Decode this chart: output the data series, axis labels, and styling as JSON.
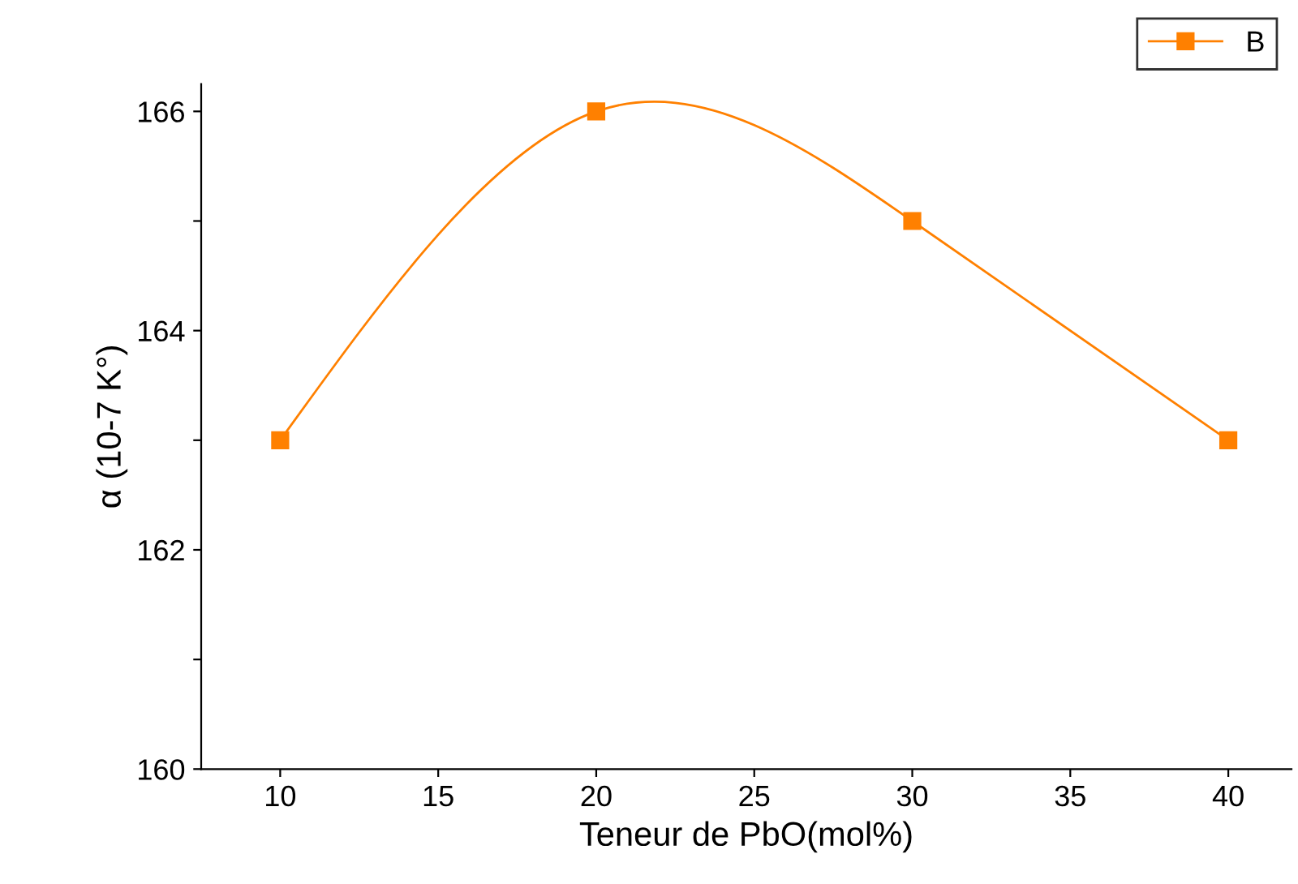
{
  "chart_data": {
    "type": "line",
    "xlabel": "Teneur de PbO(mol%)",
    "ylabel": "α (10-7 K°)",
    "x": [
      10,
      20,
      30,
      40
    ],
    "series": [
      {
        "name": "B",
        "color": "#ff8000",
        "values": [
          163,
          166,
          165,
          163
        ]
      }
    ],
    "xlim": [
      7.5,
      42
    ],
    "ylim": [
      160,
      166.25
    ],
    "xticks": [
      10,
      15,
      20,
      25,
      30,
      35,
      40
    ],
    "yticks": [
      160,
      {
        "value": 161,
        "label": null
      },
      162,
      {
        "value": 163,
        "label": null
      },
      164,
      {
        "value": 165,
        "label": null
      },
      166
    ],
    "marker": "square",
    "line_style": "solid",
    "grid": false,
    "legend": "top right"
  }
}
